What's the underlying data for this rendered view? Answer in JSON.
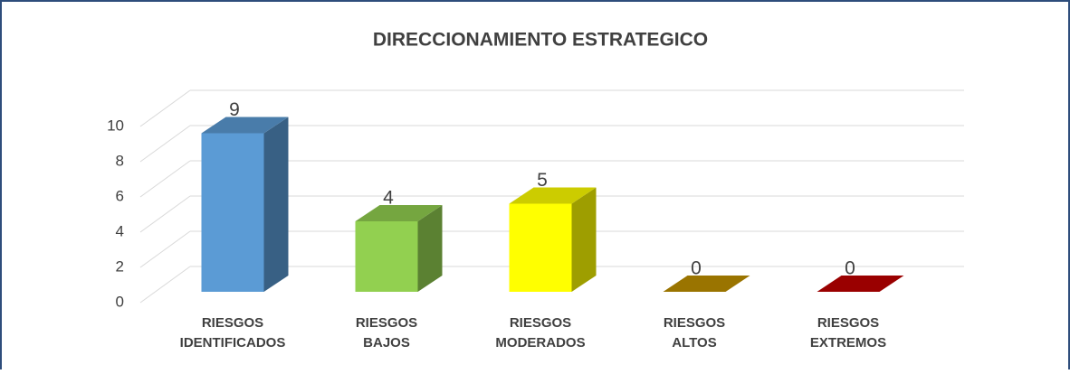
{
  "chart_data": {
    "type": "bar3d",
    "title": "DIRECCIONAMIENTO  ESTRATEGICO",
    "categories": [
      "RIESGOS\nIDENTIFICADOS",
      "RIESGOS\nBAJOS",
      "RIESGOS\nMODERADOS",
      "RIESGOS\nALTOS",
      "RIESGOS\nEXTREMOS"
    ],
    "values": [
      9,
      4,
      5,
      0,
      0
    ],
    "colors": [
      "#5b9bd5",
      "#92d050",
      "#ffff00",
      "#c09100",
      "#c00000"
    ],
    "ylim": [
      0,
      10
    ],
    "yticks": [
      0,
      2,
      4,
      6,
      8,
      10
    ],
    "grid": true
  }
}
